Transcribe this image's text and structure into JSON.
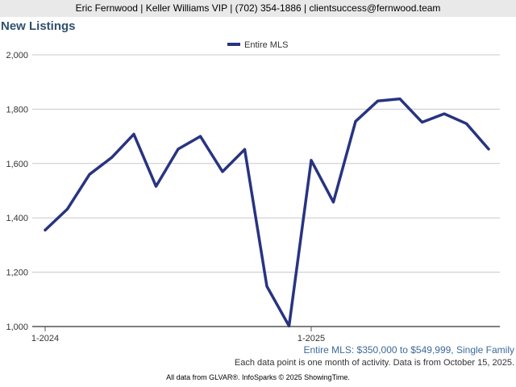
{
  "header": {
    "contact": "Eric Fernwood | Keller Williams VIP | (702) 354-1886 | clientsuccess@fernwood.team"
  },
  "notes": {
    "filter": "Entire MLS: $350,000 to $549,999, Single Family",
    "note": "Each data point is one month of activity. Data is from October 15, 2025.",
    "footer": "All data from GLVAR®. InfoSparks © 2025 ShowingTime."
  },
  "colors": {
    "series": "#283480",
    "title": "#2f4f6f",
    "grid": "#c8c8c8",
    "axis": "#555555",
    "filter": "#3c6a9a"
  },
  "chart_data": {
    "type": "line",
    "title": "New Listings",
    "xlabel": "",
    "ylabel": "",
    "ylim": [
      1000,
      2000
    ],
    "yticks": [
      1000,
      1200,
      1400,
      1600,
      1800,
      2000
    ],
    "ytick_labels": [
      "1,000",
      "1,200",
      "1,400",
      "1,600",
      "1,800",
      "2,000"
    ],
    "xtick_labels": [
      {
        "index": 0,
        "label": "1-2024"
      },
      {
        "index": 12,
        "label": "1-2025"
      }
    ],
    "grid": true,
    "legend": "top-center",
    "x": [
      "2024-01",
      "2024-02",
      "2024-03",
      "2024-04",
      "2024-05",
      "2024-06",
      "2024-07",
      "2024-08",
      "2024-09",
      "2024-10",
      "2024-11",
      "2024-12",
      "2025-01",
      "2025-02",
      "2025-03",
      "2025-04",
      "2025-05",
      "2025-06",
      "2025-07",
      "2025-08",
      "2025-09"
    ],
    "series": [
      {
        "name": "Entire MLS",
        "values": [
          1355,
          1432,
          1560,
          1622,
          1708,
          1516,
          1653,
          1700,
          1570,
          1652,
          1148,
          1002,
          1612,
          1458,
          1755,
          1830,
          1838,
          1752,
          1783,
          1747,
          1653
        ]
      }
    ]
  }
}
